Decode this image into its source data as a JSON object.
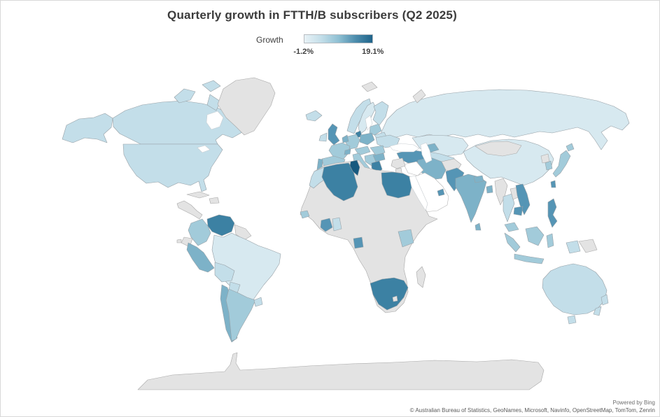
{
  "title": "Quarterly growth in FTTH/B subscribers (Q2 2025)",
  "legend": {
    "label": "Growth",
    "min_label": "-1.2%",
    "max_label": "19.1%",
    "gradient": [
      "#e8f2f6",
      "#c3dee9",
      "#8fc0d3",
      "#4d8dad",
      "#1f648a"
    ]
  },
  "attribution": {
    "line1": "Powered by Bing",
    "line2": "© Australian Bureau of Statistics, GeoNames, Microsoft, Navinfo, OpenStreetMap, TomTom, Zenrin"
  },
  "chart_data": {
    "type": "choropleth",
    "title": "Quarterly growth in FTTH/B subscribers (Q2 2025)",
    "metric": "Growth",
    "value_range": {
      "min": -1.2,
      "max": 19.1,
      "unit": "%"
    },
    "legend_position": "top-center",
    "palette": {
      "p1": "#d7e9f0",
      "p2": "#c3dee9",
      "p3": "#a2cbda",
      "p4": "#7db2c8",
      "p5": "#5595b5",
      "p6": "#3c81a3",
      "p7": "#17597f",
      "no_data": "#e3e3e3",
      "no_data_white": "#ffffff",
      "sea": "#ffffff"
    },
    "stroke_colors": {
      "land": "#97a0a6",
      "no_data": "#a8a8a8",
      "white_land": "#b5b5b5",
      "sea": "#c9ced2"
    },
    "regions": [
      {
        "id": "russia",
        "name": "Russia",
        "shade": "p1"
      },
      {
        "id": "kazakhstan",
        "name": "Kazakhstan",
        "shade": "p1"
      },
      {
        "id": "central-asia",
        "name": "Central Asia",
        "shade": "p2"
      },
      {
        "id": "china",
        "name": "China",
        "shade": "p1"
      },
      {
        "id": "mongolia",
        "name": "Mongolia",
        "shade": "no_data"
      },
      {
        "id": "canada",
        "name": "Canada",
        "shade": "p2"
      },
      {
        "id": "alaska",
        "name": "Alaska (US)",
        "shade": "p2"
      },
      {
        "id": "usa",
        "name": "United States",
        "shade": "p2"
      },
      {
        "id": "arctic-island-1",
        "name": "Arctic islands",
        "shade": "p2"
      },
      {
        "id": "arctic-island-2",
        "name": "Arctic islands",
        "shade": "p2"
      },
      {
        "id": "arctic-island-3",
        "name": "Arctic islands",
        "shade": "p2"
      },
      {
        "id": "arctic-island-4",
        "name": "Baffin Island",
        "shade": "p2"
      },
      {
        "id": "hudson-bay",
        "name": "Hudson Bay",
        "shade": "sea"
      },
      {
        "id": "great-lakes",
        "name": "Great Lakes",
        "shade": "sea"
      },
      {
        "id": "greenland",
        "name": "Greenland",
        "shade": "no_data"
      },
      {
        "id": "svalbard",
        "name": "Svalbard",
        "shade": "no_data"
      },
      {
        "id": "novaya-zemlya",
        "name": "Novaya Zemlya",
        "shade": "no_data"
      },
      {
        "id": "iceland",
        "name": "Iceland",
        "shade": "p2"
      },
      {
        "id": "norway",
        "name": "Norway",
        "shade": "p2"
      },
      {
        "id": "sweden",
        "name": "Sweden",
        "shade": "p1"
      },
      {
        "id": "baltics",
        "name": "Baltic states",
        "shade": "p3"
      },
      {
        "id": "baltic-sea",
        "name": "Baltic Sea",
        "shade": "sea"
      },
      {
        "id": "finland",
        "name": "Finland",
        "shade": "p2"
      },
      {
        "id": "denmark",
        "name": "Denmark",
        "shade": "p6"
      },
      {
        "id": "uk",
        "name": "United Kingdom",
        "shade": "p5"
      },
      {
        "id": "ireland",
        "name": "Ireland",
        "shade": "p2"
      },
      {
        "id": "belarus",
        "name": "Belarus",
        "shade": "p2"
      },
      {
        "id": "poland",
        "name": "Poland",
        "shade": "p4"
      },
      {
        "id": "germany",
        "name": "Germany",
        "shade": "p3"
      },
      {
        "id": "benelux",
        "name": "Benelux",
        "shade": "p4"
      },
      {
        "id": "france",
        "name": "France",
        "shade": "p3"
      },
      {
        "id": "spain",
        "name": "Spain",
        "shade": "p3"
      },
      {
        "id": "portugal",
        "name": "Portugal",
        "shade": "p4"
      },
      {
        "id": "switzerland",
        "name": "Switzerland",
        "shade": "p4"
      },
      {
        "id": "czech-austria",
        "name": "Czechia/Austria/Hungary",
        "shade": "p3"
      },
      {
        "id": "italy",
        "name": "Italy",
        "shade": "p3"
      },
      {
        "id": "sicily",
        "name": "Sicily",
        "shade": "p3"
      },
      {
        "id": "ukraine",
        "name": "Ukraine",
        "shade": "p2"
      },
      {
        "id": "romania",
        "name": "Romania",
        "shade": "p3"
      },
      {
        "id": "balkans",
        "name": "Balkans",
        "shade": "p3"
      },
      {
        "id": "bulgaria",
        "name": "Bulgaria",
        "shade": "p4"
      },
      {
        "id": "greece",
        "name": "Greece",
        "shade": "p6"
      },
      {
        "id": "turkey",
        "name": "Turkey",
        "shade": "p5"
      },
      {
        "id": "caucasus",
        "name": "Caucasus",
        "shade": "p4"
      },
      {
        "id": "iran",
        "name": "Iran",
        "shade": "p4"
      },
      {
        "id": "caspian-sea",
        "name": "Caspian Sea",
        "shade": "sea"
      },
      {
        "id": "black-sea",
        "name": "Black Sea",
        "shade": "sea"
      },
      {
        "id": "afghanistan",
        "name": "Afghanistan",
        "shade": "no_data"
      },
      {
        "id": "iraq",
        "name": "Iraq",
        "shade": "no_data_white"
      },
      {
        "id": "syria",
        "name": "Syria",
        "shade": "no_data"
      },
      {
        "id": "jordan-israel",
        "name": "Jordan/Israel",
        "shade": "no_data"
      },
      {
        "id": "saudi-arabia",
        "name": "Arabian Peninsula",
        "shade": "no_data_white"
      },
      {
        "id": "uae",
        "name": "United Arab Emirates",
        "shade": "p5"
      },
      {
        "id": "pakistan",
        "name": "Pakistan",
        "shade": "p5"
      },
      {
        "id": "india",
        "name": "India",
        "shade": "p4"
      },
      {
        "id": "nepal",
        "name": "Nepal",
        "shade": "p4"
      },
      {
        "id": "bangladesh",
        "name": "Bangladesh",
        "shade": "p4"
      },
      {
        "id": "sri-lanka",
        "name": "Sri Lanka",
        "shade": "p4"
      },
      {
        "id": "myanmar",
        "name": "Myanmar",
        "shade": "no_data"
      },
      {
        "id": "thailand",
        "name": "Thailand",
        "shade": "p2"
      },
      {
        "id": "laos",
        "name": "Laos",
        "shade": "no_data"
      },
      {
        "id": "vietnam",
        "name": "Vietnam",
        "shade": "p5"
      },
      {
        "id": "cambodia",
        "name": "Cambodia",
        "shade": "p5"
      },
      {
        "id": "malaysia",
        "name": "Malaysia",
        "shade": "p3"
      },
      {
        "id": "philippines",
        "name": "Philippines",
        "shade": "p5"
      },
      {
        "id": "taiwan",
        "name": "Taiwan",
        "shade": "p5"
      },
      {
        "id": "north-korea",
        "name": "North Korea",
        "shade": "no_data"
      },
      {
        "id": "south-korea",
        "name": "South Korea",
        "shade": "p3"
      },
      {
        "id": "japan",
        "name": "Japan",
        "shade": "p3"
      },
      {
        "id": "hokkaido",
        "name": "Hokkaido (Japan)",
        "shade": "p3"
      },
      {
        "id": "sumatra",
        "name": "Indonesia (Sumatra)",
        "shade": "p3"
      },
      {
        "id": "borneo",
        "name": "Malaysia/Indonesia (Borneo)",
        "shade": "p3"
      },
      {
        "id": "java",
        "name": "Indonesia (Java)",
        "shade": "p3"
      },
      {
        "id": "sulawesi",
        "name": "Indonesia (Sulawesi)",
        "shade": "p3"
      },
      {
        "id": "west-papua",
        "name": "Indonesia (Papua)",
        "shade": "p2"
      },
      {
        "id": "papua-new-guinea",
        "name": "Papua New Guinea",
        "shade": "no_data"
      },
      {
        "id": "africa-nodata",
        "name": "Africa (no data)",
        "shade": "no_data"
      },
      {
        "id": "morocco",
        "name": "Morocco",
        "shade": "p2"
      },
      {
        "id": "algeria",
        "name": "Algeria",
        "shade": "p6"
      },
      {
        "id": "tunisia",
        "name": "Tunisia",
        "shade": "p7"
      },
      {
        "id": "egypt",
        "name": "Egypt",
        "shade": "p6"
      },
      {
        "id": "red-sea",
        "name": "Red Sea",
        "shade": "sea"
      },
      {
        "id": "senegal",
        "name": "Senegal",
        "shade": "p3"
      },
      {
        "id": "ivory-coast",
        "name": "Côte d'Ivoire",
        "shade": "p5"
      },
      {
        "id": "ghana",
        "name": "Ghana",
        "shade": "p2"
      },
      {
        "id": "gabon",
        "name": "Gabon",
        "shade": "p5"
      },
      {
        "id": "kenya",
        "name": "Kenya",
        "shade": "p3"
      },
      {
        "id": "south-africa",
        "name": "South Africa",
        "shade": "p6"
      },
      {
        "id": "lesotho",
        "name": "Lesotho",
        "shade": "no_data"
      },
      {
        "id": "madagascar",
        "name": "Madagascar",
        "shade": "no_data"
      },
      {
        "id": "central-america",
        "name": "Central America",
        "shade": "no_data"
      },
      {
        "id": "cuba",
        "name": "Cuba",
        "shade": "no_data"
      },
      {
        "id": "hispaniola",
        "name": "Hispaniola",
        "shade": "no_data"
      },
      {
        "id": "venezuela",
        "name": "Venezuela",
        "shade": "p6"
      },
      {
        "id": "colombia",
        "name": "Colombia",
        "shade": "p3"
      },
      {
        "id": "guyanas",
        "name": "Guyanas",
        "shade": "no_data"
      },
      {
        "id": "brazil",
        "name": "Brazil",
        "shade": "p1"
      },
      {
        "id": "ecuador",
        "name": "Ecuador",
        "shade": "no_data"
      },
      {
        "id": "peru",
        "name": "Peru",
        "shade": "p4"
      },
      {
        "id": "bolivia",
        "name": "Bolivia",
        "shade": "p2"
      },
      {
        "id": "paraguay",
        "name": "Paraguay",
        "shade": "p2"
      },
      {
        "id": "chile",
        "name": "Chile",
        "shade": "p4"
      },
      {
        "id": "argentina",
        "name": "Argentina",
        "shade": "p3"
      },
      {
        "id": "uruguay",
        "name": "Uruguay",
        "shade": "p2"
      },
      {
        "id": "galapagos",
        "name": "Galápagos",
        "shade": "no_data"
      },
      {
        "id": "australia",
        "name": "Australia",
        "shade": "p2"
      },
      {
        "id": "tasmania",
        "name": "Tasmania",
        "shade": "p2"
      },
      {
        "id": "nz-north",
        "name": "New Zealand (North Island)",
        "shade": "p2"
      },
      {
        "id": "nz-south",
        "name": "New Zealand (South Island)",
        "shade": "p2"
      },
      {
        "id": "antarctica",
        "name": "Antarctica",
        "shade": "no_data"
      }
    ]
  }
}
